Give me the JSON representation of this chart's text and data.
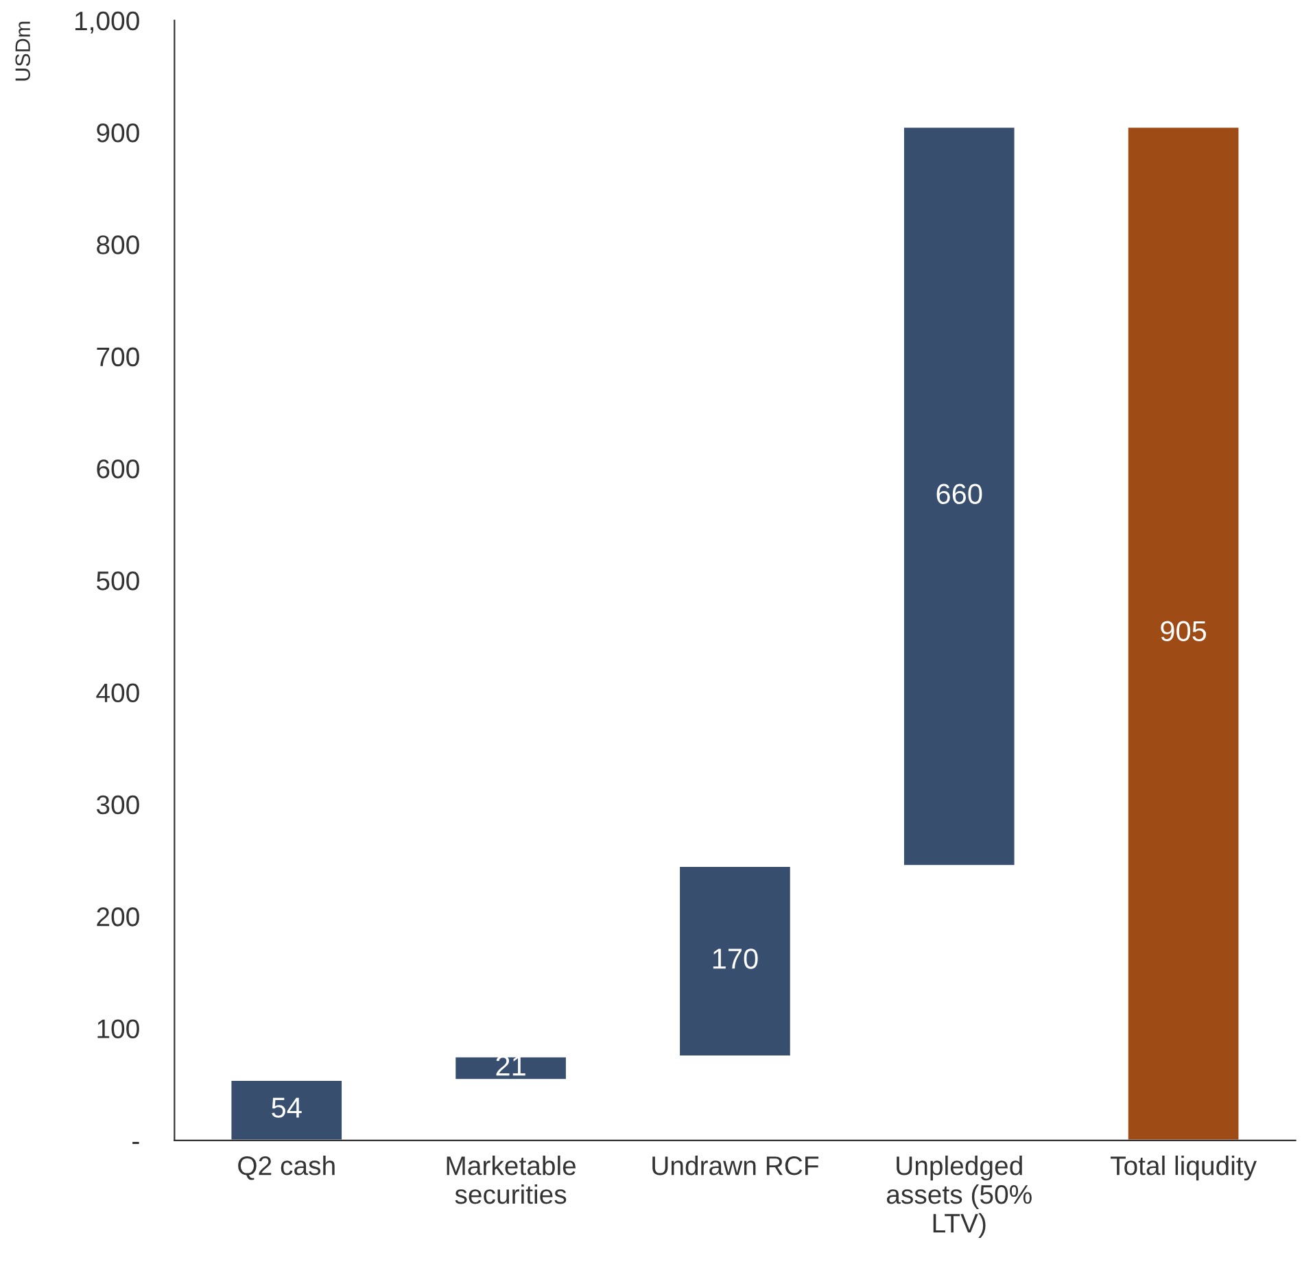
{
  "chart_data": {
    "type": "bar",
    "ylabel": "USDm",
    "categories": [
      "Q2 cash",
      "Marketable\nsecurities",
      "Undrawn RCF",
      "Unpledged\nassets (50%\nLTV)",
      "Total liqudity"
    ],
    "values": [
      54,
      21,
      170,
      660,
      905
    ],
    "base": [
      0,
      54,
      75,
      245,
      0
    ],
    "colors": [
      "#374e6e",
      "#374e6e",
      "#374e6e",
      "#374e6e",
      "#9e4b16"
    ],
    "ylim": [
      0,
      1000
    ],
    "yticks": [
      {
        "value": 0,
        "label": "-"
      },
      100,
      200,
      300,
      400,
      500,
      600,
      700,
      800,
      900,
      {
        "value": 1000,
        "label": "1,000"
      }
    ],
    "data_labels": true,
    "grid": false,
    "legend": false
  }
}
